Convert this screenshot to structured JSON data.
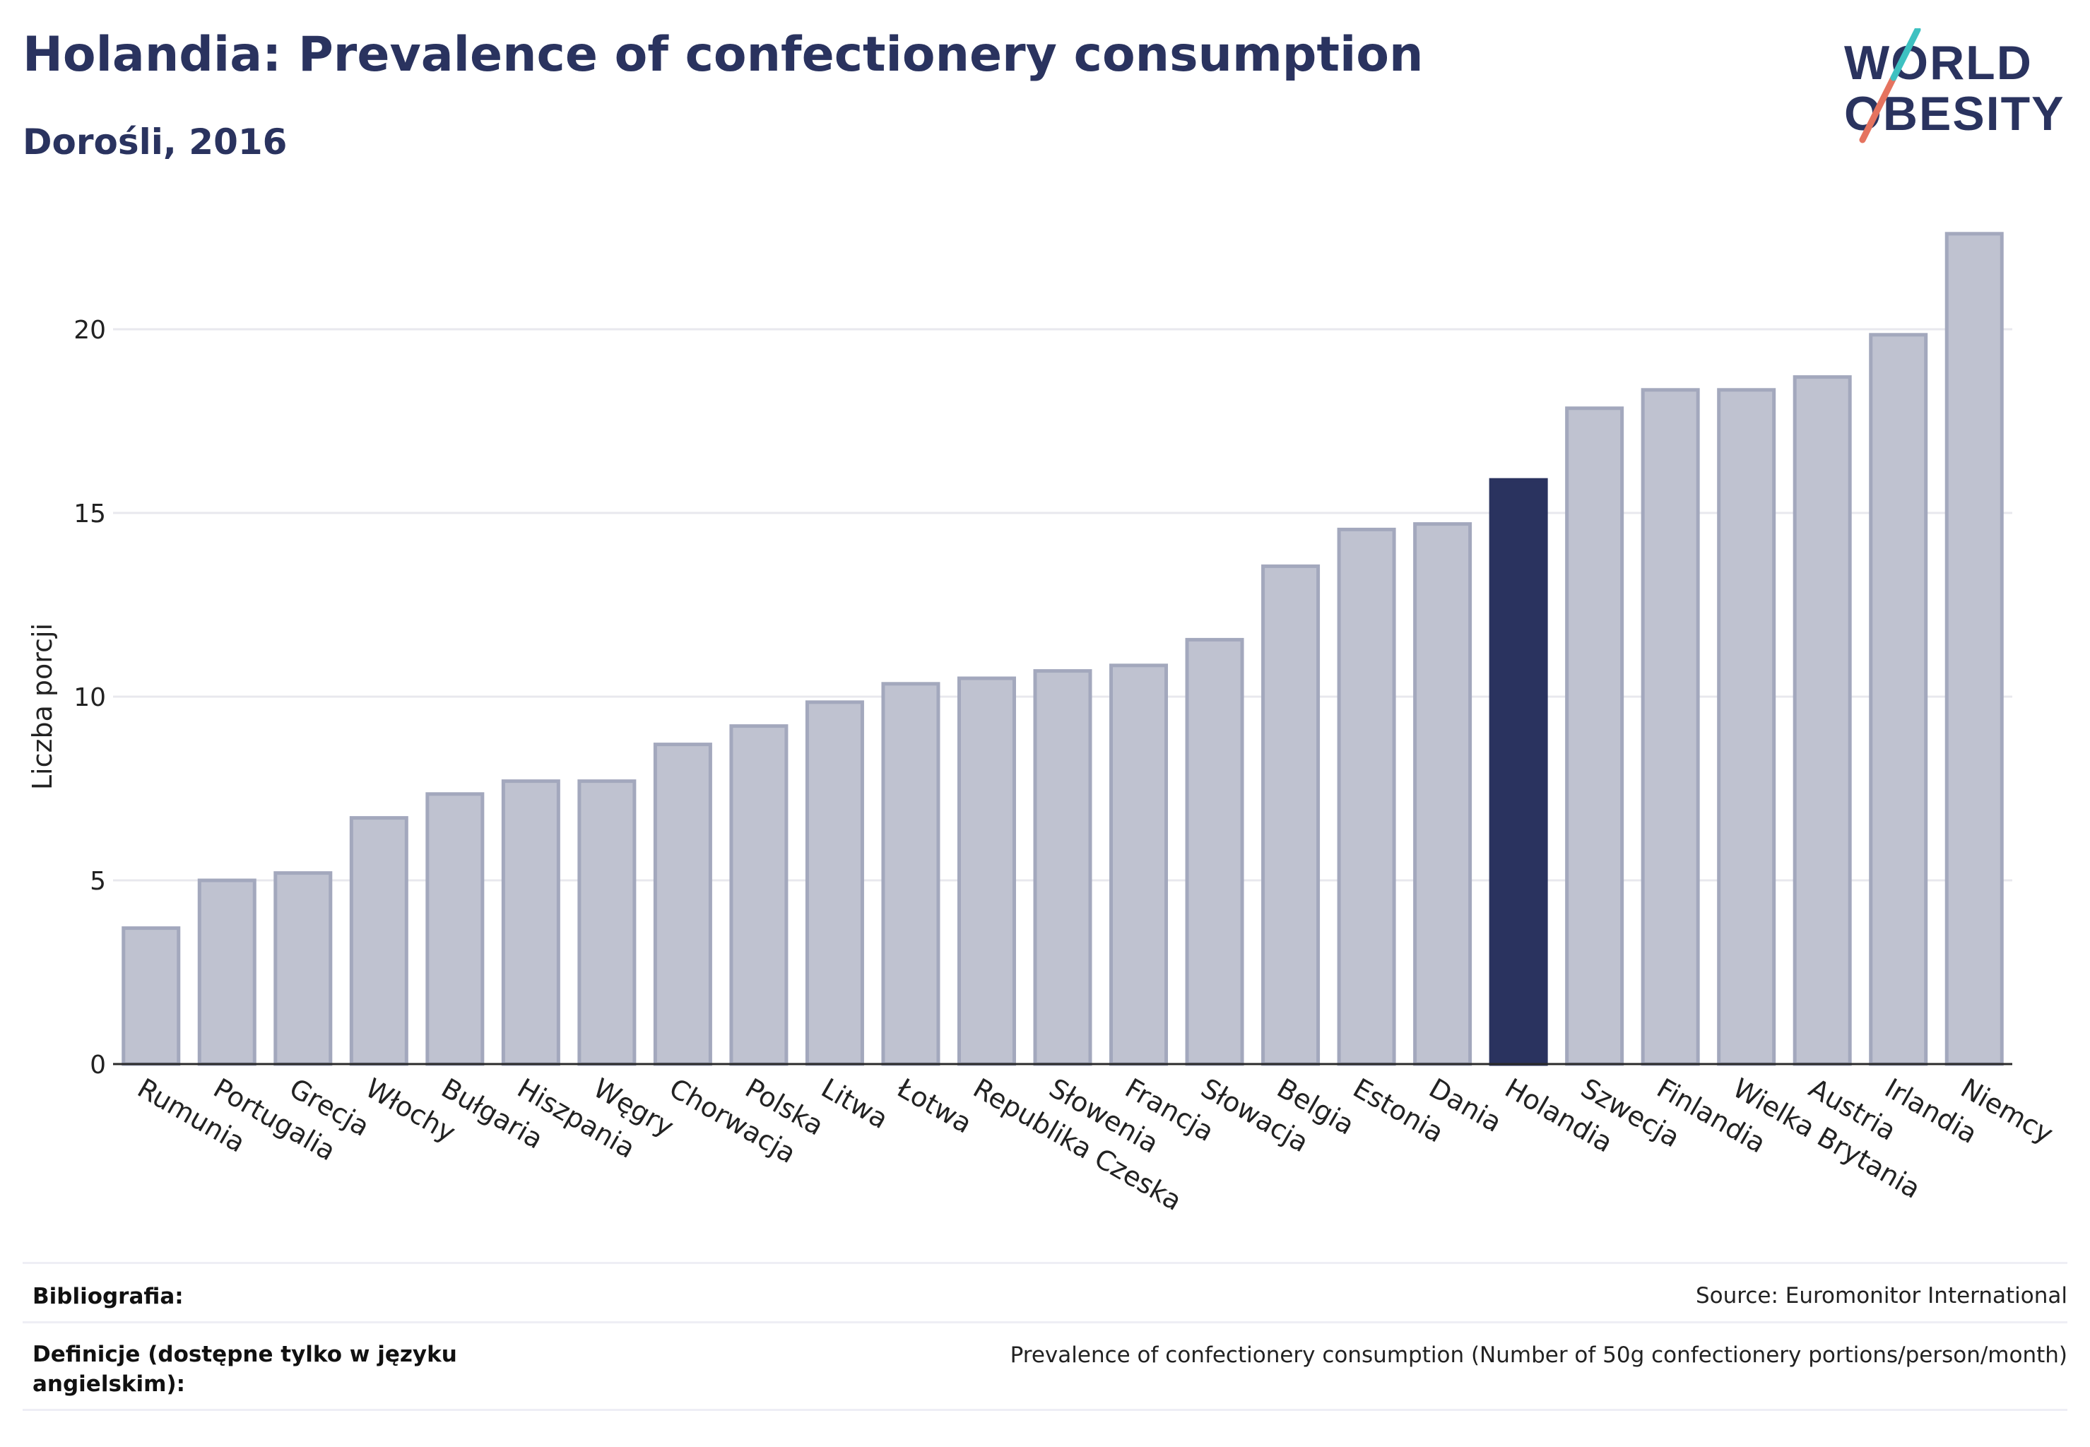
{
  "header": {
    "title": "Holandia: Prevalence of confectionery consumption",
    "subtitle": "Dorośli, 2016"
  },
  "logo": {
    "line1": "WORLD",
    "line2": "OBESITY",
    "accent_teal": "#3ec1c1",
    "accent_coral": "#e5735f"
  },
  "colors": {
    "bar_default": "#bfc2d0",
    "bar_default_stroke": "#a3a8bd",
    "bar_highlight": "#2a335f",
    "gridline": "#e8e8ee",
    "axis": "#2a2a2a",
    "text_dark": "#2a335f"
  },
  "chart_data": {
    "type": "bar",
    "ylabel": "Liczba porcji",
    "xlabel": "",
    "ylim": [
      0,
      23
    ],
    "yticks": [
      0,
      5,
      10,
      15,
      20
    ],
    "grid": true,
    "highlight": "Holandia",
    "categories": [
      "Rumunia",
      "Portugalia",
      "Grecja",
      "Włochy",
      "Bułgaria",
      "Hiszpania",
      "Węgry",
      "Chorwacja",
      "Polska",
      "Litwa",
      "Łotwa",
      "Republika Czeska",
      "Słowenia",
      "Francja",
      "Słowacja",
      "Belgia",
      "Estonia",
      "Dania",
      "Holandia",
      "Szwecja",
      "Finlandia",
      "Wielka Brytania",
      "Austria",
      "Irlandia",
      "Niemcy"
    ],
    "values": [
      3.7,
      5.0,
      5.2,
      6.7,
      7.35,
      7.7,
      7.7,
      8.7,
      9.2,
      9.85,
      10.35,
      10.5,
      10.7,
      10.85,
      11.55,
      13.55,
      14.55,
      14.7,
      15.9,
      17.85,
      18.35,
      18.35,
      18.7,
      19.85,
      22.6
    ]
  },
  "footer": {
    "bibliography_label": "Bibliografia:",
    "bibliography_value": "Source: Euromonitor International",
    "definitions_label": "Definicje (dostępne tylko w języku angielskim):",
    "definitions_value": "Prevalence of confectionery consumption (Number of 50g confectionery portions/person/month)"
  }
}
